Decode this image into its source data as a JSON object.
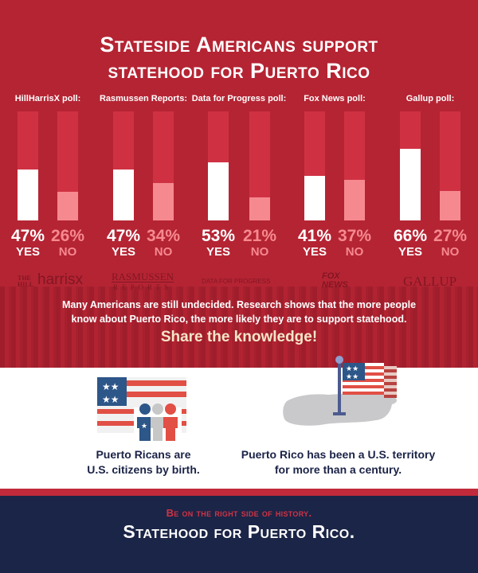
{
  "header": {
    "title_line1": "Stateside Americans support",
    "title_line2": "statehood for Puerto Rico"
  },
  "chart_data": {
    "type": "bar",
    "title": "Stateside Americans support statehood for Puerto Rico",
    "categories": [
      "HillHarrisX poll",
      "Rasmussen Reports",
      "Data for Progress poll",
      "Fox News poll",
      "Gallup poll"
    ],
    "series": [
      {
        "name": "YES",
        "values": [
          47,
          47,
          53,
          41,
          66
        ],
        "color": "#ffffff"
      },
      {
        "name": "NO",
        "values": [
          26,
          34,
          21,
          37,
          27
        ],
        "color": "#f6898f"
      }
    ],
    "ylim": [
      0,
      100
    ],
    "xlabel": "",
    "ylabel": "",
    "grid": false,
    "legend": "none"
  },
  "polls": [
    {
      "label": "HillHarrisX poll:",
      "yes": "47%",
      "no": "26%",
      "yes_value": 47,
      "no_value": 26
    },
    {
      "label": "Rasmussen Reports:",
      "yes": "47%",
      "no": "34%",
      "yes_value": 47,
      "no_value": 34
    },
    {
      "label": "Data for Progress poll:",
      "yes": "53%",
      "no": "21%",
      "yes_value": 53,
      "no_value": 21
    },
    {
      "label": "Fox News poll:",
      "yes": "41%",
      "no": "37%",
      "yes_value": 41,
      "no_value": 37
    },
    {
      "label": "Gallup poll:",
      "yes": "66%",
      "no": "27%",
      "yes_value": 66,
      "no_value": 27
    }
  ],
  "labels": {
    "yes": "YES",
    "no": "NO"
  },
  "logos": {
    "hill_top": "THE",
    "hill_bottom": "HILL",
    "harris": "harrisx",
    "rasmussen_top": "RASMUSSEN",
    "rasmussen_bottom": "REPORTS",
    "dfp": "DATA FOR PROGRESS",
    "fox_top": "FOX",
    "fox_bottom": "NEWS",
    "gallup": "GALLUP"
  },
  "note": {
    "line1": "Many Americans are still undecided. Research shows that the more people",
    "line2": "know about Puerto Rico, the more likely they are to support statehood."
  },
  "share": "Share the knowledge!",
  "facts": [
    {
      "icon": "flag-people-icon",
      "line1": "Puerto Ricans are",
      "line2": "U.S. citizens by birth."
    },
    {
      "icon": "flag-island-icon",
      "line1": "Puerto Rico has been a U.S. territory",
      "line2": "for more than a century."
    }
  ],
  "footer": {
    "sub": "Be on the right side of history.",
    "main": "Statehood for Puerto Rico."
  },
  "colors": {
    "red_bg": "#b52433",
    "track": "#cf3142",
    "no_bar": "#f6898f",
    "navy": "#1b2547",
    "accent_red": "#d03345"
  }
}
